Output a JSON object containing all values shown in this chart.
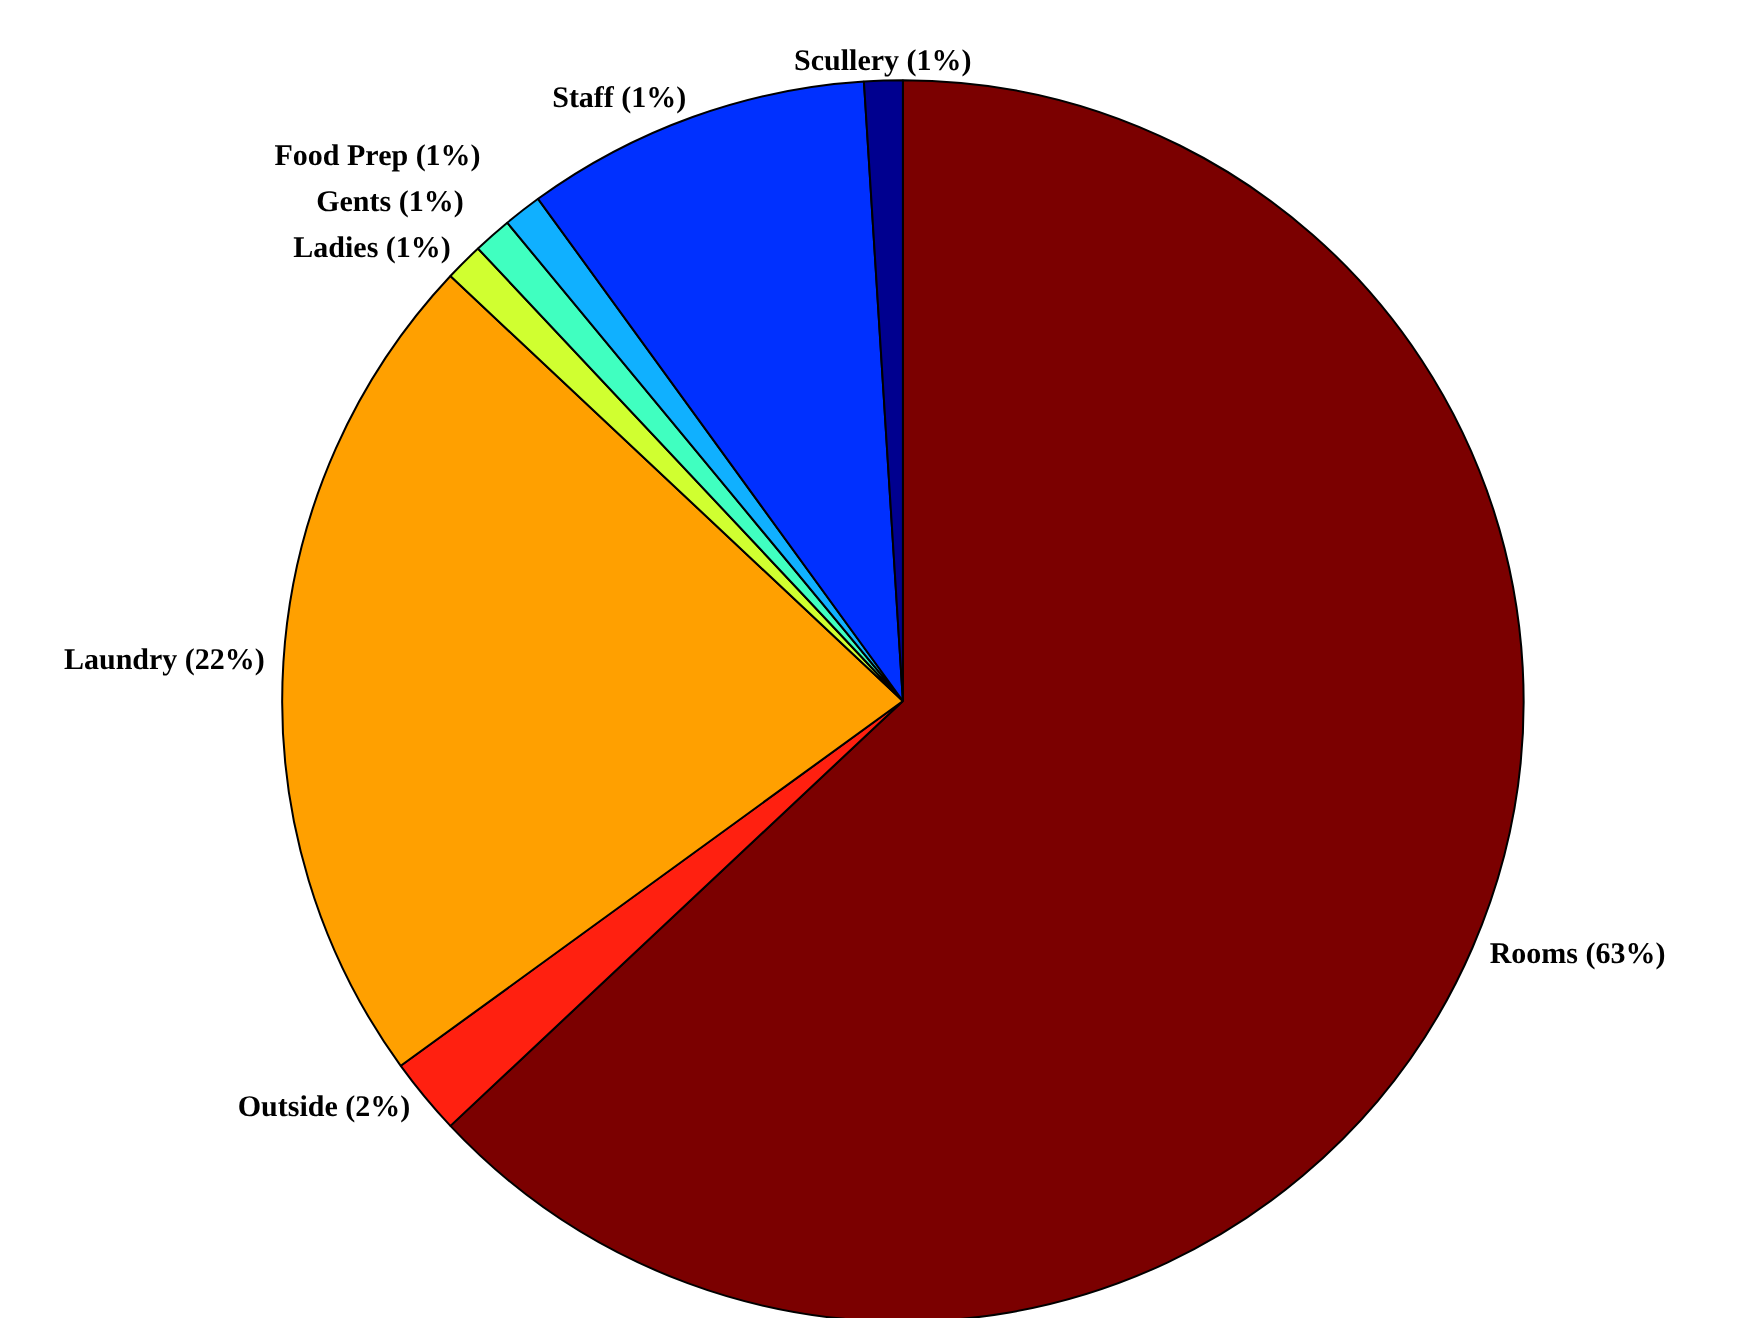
{
  "chart_data": {
    "type": "pie",
    "categories": [
      "Rooms (63%)",
      "Outside (2%)",
      "Laundry (22%)",
      "Ladies (1%)",
      "Gents (1%)",
      "Food Prep (1%)",
      "Staff (1%)",
      "Scullery (1%)"
    ],
    "values": [
      63,
      2,
      22,
      1,
      1,
      1,
      9,
      1
    ],
    "colors": [
      "#7b0000",
      "#ff2010",
      "#ffa000",
      "#d0ff30",
      "#40ffc0",
      "#10b0ff",
      "#0030ff",
      "#00008f"
    ],
    "legend": false
  }
}
